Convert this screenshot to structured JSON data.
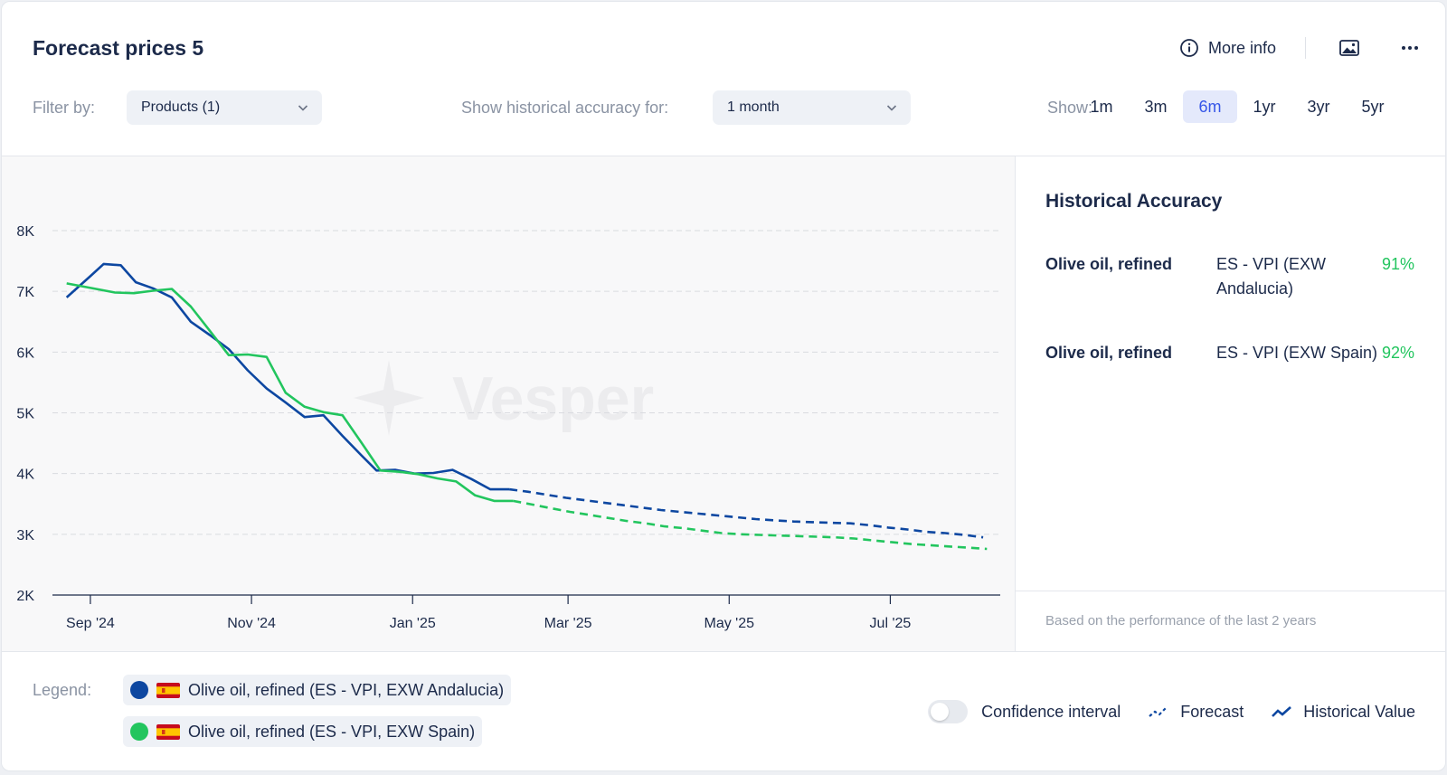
{
  "header": {
    "title": "Forecast prices 5",
    "more_info_label": "More info"
  },
  "filters": {
    "filter_by_label": "Filter by:",
    "products_value": "Products (1)",
    "accuracy_label": "Show historical accuracy for:",
    "accuracy_value": "1 month",
    "show_label": "Show:",
    "periods": [
      "1m",
      "3m",
      "6m",
      "1yr",
      "3yr",
      "5yr"
    ],
    "active_period": "6m"
  },
  "chart_data": {
    "type": "line",
    "watermark": "Vesper",
    "x_tick_labels": [
      "Sep '24",
      "Nov '24",
      "Jan '25",
      "Mar '25",
      "May '25",
      "Jul '25"
    ],
    "x_tick_weeks": [
      0,
      8.5,
      17,
      25.2,
      33.7,
      42.2
    ],
    "y_ticks": [
      2000,
      3000,
      4000,
      5000,
      6000,
      7000,
      8000
    ],
    "y_tick_labels": [
      "2K",
      "3K",
      "4K",
      "5K",
      "6K",
      "7K",
      "8K"
    ],
    "ylim": [
      2000,
      8000
    ],
    "xlim_weeks": [
      -2,
      48
    ],
    "series": [
      {
        "name": "Olive oil, refined (ES - VPI, EXW Andalucia)",
        "color": "#0d47a1",
        "historical": {
          "weeks": [
            -1.25,
            0,
            0.7,
            1.6,
            2.4,
            3.3,
            4.3,
            5.3,
            6.3,
            7.3,
            8.3,
            9.3,
            10.3,
            11.3,
            12.3,
            13.3,
            14.3,
            15.1,
            16.1,
            17.1,
            18.1,
            19.1,
            20.1,
            21.1,
            22.1
          ],
          "values": [
            6900,
            7250,
            7450,
            7430,
            7150,
            7050,
            6900,
            6500,
            6280,
            6050,
            5700,
            5400,
            5170,
            4930,
            4960,
            4620,
            4300,
            4050,
            4060,
            4000,
            4010,
            4060,
            3910,
            3740,
            3740
          ]
        },
        "forecast": {
          "weeks": [
            22.1,
            23.1,
            24.1,
            25.1,
            26.1,
            27.1,
            28.1,
            29.1,
            30.1,
            31.1,
            32.1,
            33.1,
            34.1,
            35.1,
            36.1,
            37.1,
            38.1,
            39.1,
            40.1,
            41.1,
            42.1,
            43.1,
            44.1,
            45.1,
            46.1,
            47.1
          ],
          "values": [
            3740,
            3700,
            3650,
            3600,
            3560,
            3520,
            3480,
            3440,
            3400,
            3370,
            3340,
            3310,
            3280,
            3250,
            3230,
            3210,
            3200,
            3190,
            3180,
            3150,
            3110,
            3080,
            3040,
            3020,
            2990,
            2950
          ]
        }
      },
      {
        "name": "Olive oil, refined (ES - VPI, EXW Spain)",
        "color": "#22c55e",
        "historical": {
          "weeks": [
            -1.25,
            0.3,
            1.3,
            2.3,
            3.3,
            4.3,
            5.3,
            6.3,
            7.3,
            8.3,
            9.3,
            10.3,
            11.3,
            12.3,
            13.3,
            14.3,
            15.3,
            16.3,
            17.3,
            18.3,
            19.3,
            20.3,
            21.3,
            22.3
          ],
          "values": [
            7130,
            7040,
            6980,
            6970,
            7010,
            7040,
            6750,
            6350,
            5950,
            5960,
            5920,
            5330,
            5100,
            5010,
            4960,
            4510,
            4050,
            4030,
            3990,
            3920,
            3870,
            3640,
            3550,
            3550
          ]
        },
        "forecast": {
          "weeks": [
            22.3,
            23.3,
            24.3,
            25.3,
            26.3,
            27.3,
            28.3,
            29.3,
            30.3,
            31.3,
            32.3,
            33.3,
            34.3,
            35.3,
            36.3,
            37.3,
            38.3,
            39.3,
            40.3,
            41.3,
            42.3,
            43.3,
            44.3,
            45.3,
            46.3,
            47.3
          ],
          "values": [
            3550,
            3490,
            3430,
            3370,
            3320,
            3270,
            3220,
            3180,
            3130,
            3100,
            3060,
            3020,
            3000,
            2990,
            2980,
            2970,
            2960,
            2950,
            2930,
            2900,
            2870,
            2840,
            2820,
            2800,
            2780,
            2760
          ]
        }
      }
    ]
  },
  "accuracy": {
    "title": "Historical Accuracy",
    "rows": [
      {
        "product": "Olive oil, refined",
        "source": "ES - VPI (EXW Andalucia)",
        "value": "91%"
      },
      {
        "product": "Olive oil, refined",
        "source": "ES - VPI (EXW Spain)",
        "value": "92%"
      }
    ],
    "note": "Based on the performance of the last 2 years"
  },
  "legend": {
    "label": "Legend:",
    "items": [
      {
        "label": "Olive oil, refined (ES - VPI, EXW Andalucia)",
        "color": "#0d47a1"
      },
      {
        "label": "Olive oil, refined (ES - VPI, EXW Spain)",
        "color": "#22c55e"
      }
    ],
    "confidence_label": "Confidence interval",
    "forecast_label": "Forecast",
    "historical_label": "Historical Value"
  }
}
